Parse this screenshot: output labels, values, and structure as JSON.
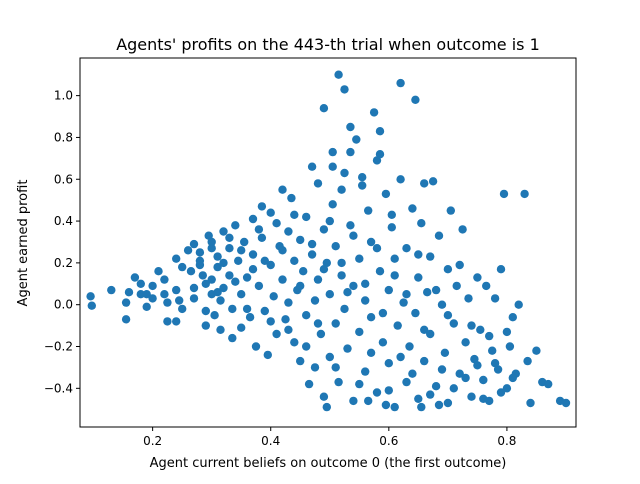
{
  "chart_data": {
    "type": "scatter",
    "title": "Agents' profits on the 443-th trial when outcome is 1",
    "xlabel": "Agent current beliefs on outcome 0 (the first outcome)",
    "ylabel": "Agent earned profit",
    "xlim": [
      0.077,
      0.917
    ],
    "ylim": [
      -0.585,
      1.18
    ],
    "xticks": [
      0.2,
      0.4,
      0.6,
      0.8
    ],
    "xtick_labels": [
      "0.2",
      "0.4",
      "0.6",
      "0.8"
    ],
    "yticks": [
      -0.4,
      -0.2,
      0.0,
      0.2,
      0.4,
      0.6,
      0.8,
      1.0
    ],
    "ytick_labels": [
      "−0.4",
      "−0.2",
      "0.0",
      "0.2",
      "0.4",
      "0.6",
      "0.8",
      "1.0"
    ],
    "grid": false,
    "legend": "none",
    "marker_color": "#1f77b4",
    "points": [
      [
        0.095,
        0.04
      ],
      [
        0.097,
        -0.005
      ],
      [
        0.13,
        0.07
      ],
      [
        0.155,
        -0.07
      ],
      [
        0.155,
        0.01
      ],
      [
        0.16,
        0.06
      ],
      [
        0.17,
        0.13
      ],
      [
        0.18,
        0.05
      ],
      [
        0.18,
        0.1
      ],
      [
        0.19,
        -0.01
      ],
      [
        0.19,
        0.05
      ],
      [
        0.2,
        0.09
      ],
      [
        0.2,
        0.03
      ],
      [
        0.21,
        0.16
      ],
      [
        0.22,
        0.12
      ],
      [
        0.22,
        0.05
      ],
      [
        0.225,
        -0.08
      ],
      [
        0.225,
        0.01
      ],
      [
        0.24,
        -0.08
      ],
      [
        0.24,
        0.22
      ],
      [
        0.24,
        0.07
      ],
      [
        0.245,
        0.02
      ],
      [
        0.25,
        0.18
      ],
      [
        0.25,
        -0.02
      ],
      [
        0.26,
        0.26
      ],
      [
        0.265,
        0.16
      ],
      [
        0.27,
        0.08
      ],
      [
        0.27,
        0.03
      ],
      [
        0.28,
        0.25
      ],
      [
        0.28,
        0.21
      ],
      [
        0.285,
        0.14
      ],
      [
        0.29,
        -0.03
      ],
      [
        0.29,
        -0.1
      ],
      [
        0.295,
        0.33
      ],
      [
        0.3,
        0.12
      ],
      [
        0.3,
        0.05
      ],
      [
        0.3,
        0.3
      ],
      [
        0.305,
        -0.05
      ],
      [
        0.31,
        0.23
      ],
      [
        0.31,
        0.18
      ],
      [
        0.315,
        0.02
      ],
      [
        0.315,
        -0.12
      ],
      [
        0.32,
        0.35
      ],
      [
        0.32,
        0.08
      ],
      [
        0.33,
        0.27
      ],
      [
        0.33,
        0.14
      ],
      [
        0.335,
        -0.02
      ],
      [
        0.335,
        -0.16
      ],
      [
        0.34,
        0.38
      ],
      [
        0.345,
        0.21
      ],
      [
        0.35,
        0.05
      ],
      [
        0.35,
        -0.11
      ],
      [
        0.355,
        0.3
      ],
      [
        0.36,
        0.13
      ],
      [
        0.365,
        -0.06
      ],
      [
        0.37,
        0.41
      ],
      [
        0.37,
        0.24
      ],
      [
        0.375,
        -0.2
      ],
      [
        0.38,
        0.09
      ],
      [
        0.385,
        0.47
      ],
      [
        0.385,
        0.32
      ],
      [
        0.39,
        -0.03
      ],
      [
        0.395,
        -0.24
      ],
      [
        0.4,
        0.19
      ],
      [
        0.4,
        0.44
      ],
      [
        0.405,
        0.04
      ],
      [
        0.41,
        -0.14
      ],
      [
        0.415,
        0.28
      ],
      [
        0.42,
        0.55
      ],
      [
        0.42,
        0.12
      ],
      [
        0.425,
        -0.07
      ],
      [
        0.43,
        0.35
      ],
      [
        0.43,
        0.01
      ],
      [
        0.435,
        0.51
      ],
      [
        0.44,
        0.21
      ],
      [
        0.44,
        -0.18
      ],
      [
        0.445,
        0.07
      ],
      [
        0.45,
        0.31
      ],
      [
        0.45,
        -0.27
      ],
      [
        0.455,
        0.16
      ],
      [
        0.46,
        0.42
      ],
      [
        0.46,
        -0.05
      ],
      [
        0.465,
        -0.38
      ],
      [
        0.47,
        0.66
      ],
      [
        0.47,
        0.24
      ],
      [
        0.475,
        0.02
      ],
      [
        0.475,
        -0.3
      ],
      [
        0.48,
        0.58
      ],
      [
        0.48,
        0.12
      ],
      [
        0.485,
        -0.14
      ],
      [
        0.49,
        0.94
      ],
      [
        0.49,
        0.36
      ],
      [
        0.49,
        -0.44
      ],
      [
        0.495,
        0.2
      ],
      [
        0.5,
        0.05
      ],
      [
        0.5,
        -0.25
      ],
      [
        0.505,
        0.73
      ],
      [
        0.505,
        0.48
      ],
      [
        0.51,
        -0.09
      ],
      [
        0.51,
        0.28
      ],
      [
        0.515,
        1.1
      ],
      [
        0.515,
        -0.37
      ],
      [
        0.52,
        0.14
      ],
      [
        0.52,
        0.55
      ],
      [
        0.525,
        1.03
      ],
      [
        0.525,
        -0.02
      ],
      [
        0.53,
        -0.21
      ],
      [
        0.535,
        0.38
      ],
      [
        0.535,
        0.85
      ],
      [
        0.54,
        0.09
      ],
      [
        0.54,
        -0.46
      ],
      [
        0.545,
        0.79
      ],
      [
        0.55,
        0.22
      ],
      [
        0.55,
        -0.13
      ],
      [
        0.555,
        0.61
      ],
      [
        0.56,
        0.02
      ],
      [
        0.56,
        -0.32
      ],
      [
        0.565,
        0.45
      ],
      [
        0.57,
        0.3
      ],
      [
        0.57,
        -0.06
      ],
      [
        0.575,
        0.92
      ],
      [
        0.58,
        0.69
      ],
      [
        0.58,
        -0.42
      ],
      [
        0.585,
        0.16
      ],
      [
        0.585,
        0.83
      ],
      [
        0.59,
        -0.18
      ],
      [
        0.595,
        0.53
      ],
      [
        0.6,
        0.07
      ],
      [
        0.6,
        -0.28
      ],
      [
        0.605,
        0.37
      ],
      [
        0.61,
        0.22
      ],
      [
        0.61,
        -0.49
      ],
      [
        0.615,
        -0.1
      ],
      [
        0.62,
        1.06
      ],
      [
        0.62,
        0.6
      ],
      [
        0.625,
        0.01
      ],
      [
        0.63,
        -0.37
      ],
      [
        0.63,
        0.27
      ],
      [
        0.635,
        -0.2
      ],
      [
        0.64,
        0.46
      ],
      [
        0.645,
        0.98
      ],
      [
        0.645,
        -0.04
      ],
      [
        0.65,
        0.13
      ],
      [
        0.65,
        -0.45
      ],
      [
        0.655,
        0.39
      ],
      [
        0.66,
        0.58
      ],
      [
        0.66,
        -0.27
      ],
      [
        0.665,
        0.06
      ],
      [
        0.67,
        0.23
      ],
      [
        0.67,
        -0.14
      ],
      [
        0.675,
        0.59
      ],
      [
        0.68,
        -0.39
      ],
      [
        0.685,
        0.33
      ],
      [
        0.69,
        0.0
      ],
      [
        0.695,
        -0.23
      ],
      [
        0.7,
        0.17
      ],
      [
        0.7,
        -0.47
      ],
      [
        0.705,
        0.45
      ],
      [
        0.71,
        -0.09
      ],
      [
        0.715,
        0.09
      ],
      [
        0.72,
        -0.33
      ],
      [
        0.725,
        0.36
      ],
      [
        0.73,
        -0.18
      ],
      [
        0.735,
        0.03
      ],
      [
        0.74,
        -0.44
      ],
      [
        0.745,
        -0.26
      ],
      [
        0.75,
        0.13
      ],
      [
        0.755,
        -0.12
      ],
      [
        0.76,
        -0.36
      ],
      [
        0.765,
        0.09
      ],
      [
        0.77,
        -0.46
      ],
      [
        0.775,
        -0.22
      ],
      [
        0.78,
        0.03
      ],
      [
        0.785,
        -0.31
      ],
      [
        0.79,
        0.17
      ],
      [
        0.795,
        0.53
      ],
      [
        0.8,
        -0.4
      ],
      [
        0.805,
        -0.2
      ],
      [
        0.81,
        -0.06
      ],
      [
        0.815,
        -0.33
      ],
      [
        0.82,
        0.0
      ],
      [
        0.83,
        0.53
      ],
      [
        0.835,
        -0.27
      ],
      [
        0.84,
        -0.47
      ],
      [
        0.85,
        -0.22
      ],
      [
        0.86,
        -0.37
      ],
      [
        0.87,
        -0.38
      ],
      [
        0.89,
        -0.46
      ],
      [
        0.9,
        -0.47
      ],
      [
        0.27,
        0.29
      ],
      [
        0.28,
        0.19
      ],
      [
        0.29,
        0.1
      ],
      [
        0.3,
        0.27
      ],
      [
        0.31,
        0.06
      ],
      [
        0.32,
        0.2
      ],
      [
        0.33,
        0.32
      ],
      [
        0.34,
        0.11
      ],
      [
        0.35,
        0.26
      ],
      [
        0.36,
        -0.02
      ],
      [
        0.37,
        0.17
      ],
      [
        0.38,
        0.36
      ],
      [
        0.39,
        0.21
      ],
      [
        0.4,
        -0.08
      ],
      [
        0.41,
        0.39
      ],
      [
        0.42,
        0.26
      ],
      [
        0.43,
        -0.12
      ],
      [
        0.44,
        0.43
      ],
      [
        0.45,
        0.09
      ],
      [
        0.46,
        -0.2
      ],
      [
        0.47,
        0.29
      ],
      [
        0.48,
        -0.09
      ],
      [
        0.49,
        0.17
      ],
      [
        0.5,
        0.4
      ],
      [
        0.51,
        -0.3
      ],
      [
        0.52,
        0.2
      ],
      [
        0.53,
        0.06
      ],
      [
        0.54,
        0.33
      ],
      [
        0.55,
        -0.38
      ],
      [
        0.56,
        0.1
      ],
      [
        0.57,
        -0.23
      ],
      [
        0.58,
        0.27
      ],
      [
        0.59,
        -0.04
      ],
      [
        0.6,
        -0.41
      ],
      [
        0.61,
        0.14
      ],
      [
        0.62,
        -0.25
      ],
      [
        0.63,
        0.05
      ],
      [
        0.64,
        -0.33
      ],
      [
        0.65,
        0.24
      ],
      [
        0.66,
        -0.12
      ],
      [
        0.67,
        -0.43
      ],
      [
        0.68,
        0.07
      ],
      [
        0.69,
        -0.31
      ],
      [
        0.7,
        -0.05
      ],
      [
        0.71,
        -0.4
      ],
      [
        0.72,
        0.19
      ],
      [
        0.73,
        -0.35
      ],
      [
        0.74,
        -0.1
      ],
      [
        0.75,
        -0.29
      ],
      [
        0.76,
        -0.45
      ],
      [
        0.77,
        -0.15
      ],
      [
        0.78,
        -0.28
      ],
      [
        0.79,
        -0.42
      ],
      [
        0.8,
        -0.13
      ],
      [
        0.81,
        -0.35
      ],
      [
        0.495,
        -0.49
      ],
      [
        0.565,
        -0.46
      ],
      [
        0.595,
        -0.48
      ],
      [
        0.655,
        -0.49
      ],
      [
        0.685,
        -0.48
      ],
      [
        0.525,
        0.63
      ],
      [
        0.535,
        0.73
      ],
      [
        0.555,
        0.57
      ],
      [
        0.505,
        0.66
      ],
      [
        0.585,
        0.72
      ],
      [
        0.605,
        0.43
      ]
    ]
  }
}
